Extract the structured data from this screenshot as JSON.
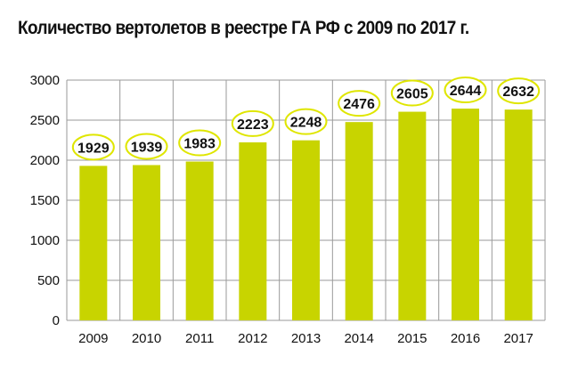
{
  "title": "Количество вертолетов в реестре ГА РФ с 2009 по 2017 г.",
  "colors": {
    "bar": "#c8d400",
    "label_oval_stroke": "#dfe600",
    "grid": "#9a9a9a",
    "text": "#111111"
  },
  "chart_data": {
    "type": "bar",
    "title": "Количество вертолетов в реестре ГА РФ с 2009 по 2017 г.",
    "xlabel": "",
    "ylabel": "",
    "categories": [
      "2009",
      "2010",
      "2011",
      "2012",
      "2013",
      "2014",
      "2015",
      "2016",
      "2017"
    ],
    "values": [
      1929,
      1939,
      1983,
      2223,
      2248,
      2476,
      2605,
      2644,
      2632
    ],
    "data_labels": [
      "1929",
      "1939",
      "1983",
      "2223",
      "2248",
      "2476",
      "2605",
      "2644",
      "2632"
    ],
    "ylim": [
      0,
      3000
    ],
    "yticks": [
      0,
      500,
      1000,
      1500,
      2000,
      2500,
      3000
    ],
    "ytick_labels": [
      "0",
      "500",
      "1000",
      "1500",
      "2000",
      "2500",
      "3000"
    ],
    "grid": true,
    "legend": "none"
  }
}
